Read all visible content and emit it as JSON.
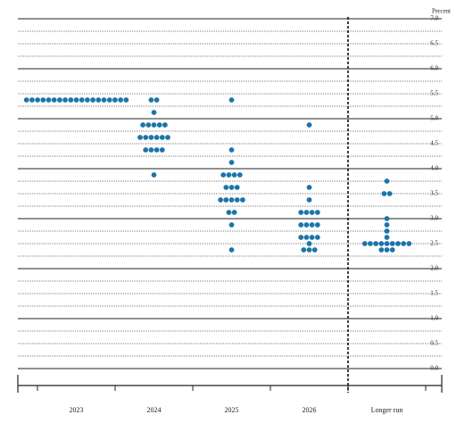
{
  "chart_data": {
    "type": "dot",
    "y_axis_label": "Percent",
    "categories": [
      "2023",
      "2024",
      "2025",
      "2026",
      "Longer run"
    ],
    "values": [
      [
        5.375,
        5.375,
        5.375,
        5.375,
        5.375,
        5.375,
        5.375,
        5.375,
        5.375,
        5.375,
        5.375,
        5.375,
        5.375,
        5.375,
        5.375,
        5.375,
        5.375,
        5.375,
        5.375
      ],
      [
        5.375,
        5.375,
        5.125,
        4.875,
        4.875,
        4.875,
        4.875,
        4.875,
        4.625,
        4.625,
        4.625,
        4.625,
        4.625,
        4.625,
        4.375,
        4.375,
        4.375,
        4.375,
        3.875
      ],
      [
        5.375,
        4.375,
        4.125,
        3.875,
        3.875,
        3.875,
        3.875,
        3.625,
        3.625,
        3.625,
        3.375,
        3.375,
        3.375,
        3.375,
        3.375,
        3.125,
        3.125,
        2.875,
        2.375
      ],
      [
        4.875,
        3.625,
        3.375,
        3.125,
        3.125,
        3.125,
        3.125,
        2.875,
        2.875,
        2.875,
        2.875,
        2.625,
        2.625,
        2.625,
        2.625,
        2.5,
        2.375,
        2.375,
        2.375
      ],
      [
        3.75,
        3.5,
        3.5,
        3.0,
        2.875,
        2.75,
        2.625,
        2.5,
        2.5,
        2.5,
        2.5,
        2.5,
        2.5,
        2.5,
        2.5,
        2.5,
        2.375,
        2.375,
        2.375
      ]
    ],
    "color": "#1b75a8",
    "ylim": [
      0,
      7
    ],
    "yticks": [
      {
        "value": 0,
        "label": "0.0"
      },
      0.5,
      {
        "value": 1,
        "label": "1.0"
      },
      1.5,
      {
        "value": 2,
        "label": "2.0"
      },
      2.5,
      {
        "value": 3,
        "label": "3.0"
      },
      3.5,
      {
        "value": 4,
        "label": "4.0"
      },
      4.5,
      {
        "value": 5,
        "label": "5.0"
      },
      5.5,
      {
        "value": 6,
        "label": "6.0"
      },
      6.5,
      {
        "value": 7,
        "label": "7.0"
      }
    ],
    "minor_yticks": [
      0.25,
      0.75,
      1.25,
      1.75,
      2.25,
      2.75,
      3.25,
      3.75,
      4.25,
      4.75,
      5.25,
      5.75,
      6.25,
      6.75
    ],
    "grid": true
  }
}
